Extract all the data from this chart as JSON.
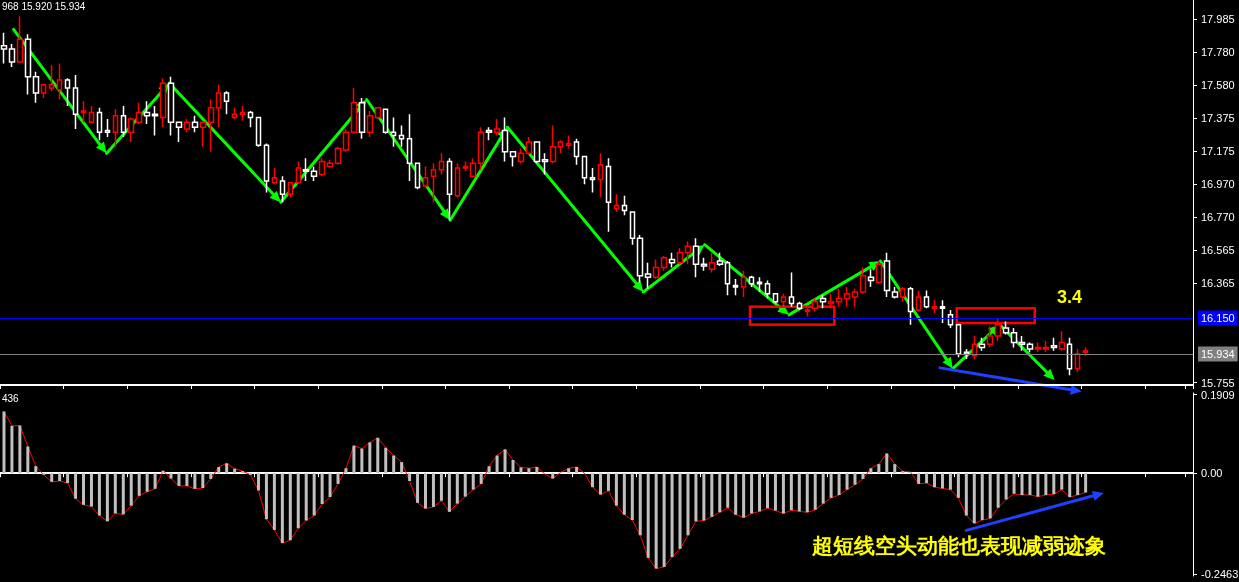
{
  "chart_data": [
    {
      "type": "candlestick",
      "categories": [
        null,
        null,
        null,
        null,
        null,
        null,
        null,
        null,
        null,
        null,
        null,
        null,
        null,
        null,
        null,
        null,
        null,
        null,
        null,
        null,
        null,
        null,
        null,
        null,
        null,
        null,
        null,
        null,
        null,
        null,
        null,
        null,
        null,
        null,
        null,
        null,
        null,
        null,
        null,
        null,
        null,
        null,
        null,
        null,
        null,
        null,
        null,
        null,
        null,
        null,
        null,
        null,
        null,
        null,
        null,
        null,
        null,
        null,
        null,
        null,
        null,
        null,
        null,
        null,
        null,
        null,
        null,
        null,
        null,
        null,
        null,
        null,
        null,
        null,
        null,
        null,
        null,
        null,
        null,
        null,
        null,
        null,
        null,
        null,
        null,
        null,
        null,
        null,
        null,
        null,
        null,
        null,
        null,
        null,
        null,
        null,
        null,
        null,
        null,
        null,
        null,
        null,
        null,
        null,
        null,
        null,
        null,
        null,
        null,
        null,
        null,
        null,
        null,
        null,
        null,
        null,
        null,
        null,
        null,
        null,
        null,
        null,
        null,
        null,
        null,
        null,
        null,
        null,
        null,
        null,
        null,
        null,
        null,
        null,
        null,
        null,
        null,
        null,
        null,
        null,
        null,
        null,
        null,
        null,
        null,
        null,
        null,
        null,
        null,
        null
      ],
      "ohlc": [
        [
          17.82,
          17.9,
          17.71,
          17.8
        ],
        [
          17.8,
          17.83,
          17.69,
          17.72
        ],
        [
          17.72,
          18.0,
          17.72,
          17.86
        ],
        [
          17.86,
          17.89,
          17.52,
          17.63
        ],
        [
          17.63,
          17.66,
          17.47,
          17.53
        ],
        [
          17.53,
          17.58,
          17.5,
          17.58
        ],
        [
          17.56,
          17.7,
          17.54,
          17.58
        ],
        [
          17.55,
          17.71,
          17.49,
          17.61
        ],
        [
          17.61,
          17.62,
          17.45,
          17.56
        ],
        [
          17.56,
          17.64,
          17.31,
          17.4
        ],
        [
          17.41,
          17.48,
          17.35,
          17.42
        ],
        [
          17.35,
          17.45,
          17.35,
          17.41
        ],
        [
          17.41,
          17.44,
          17.24,
          17.29
        ],
        [
          17.3,
          17.37,
          17.26,
          17.29
        ],
        [
          17.29,
          17.43,
          17.2,
          17.39
        ],
        [
          17.39,
          17.45,
          17.26,
          17.29
        ],
        [
          17.29,
          17.38,
          17.23,
          17.37
        ],
        [
          17.35,
          17.47,
          17.34,
          17.41
        ],
        [
          17.41,
          17.48,
          17.34,
          17.39
        ],
        [
          17.4,
          17.45,
          17.27,
          17.39
        ],
        [
          17.38,
          17.62,
          17.32,
          17.59
        ],
        [
          17.59,
          17.63,
          17.27,
          17.35
        ],
        [
          17.35,
          17.35,
          17.23,
          17.32
        ],
        [
          17.31,
          17.37,
          17.29,
          17.35
        ],
        [
          17.35,
          17.39,
          17.29,
          17.32
        ],
        [
          17.32,
          17.35,
          17.2,
          17.35
        ],
        [
          17.35,
          17.49,
          17.17,
          17.44
        ],
        [
          17.44,
          17.58,
          17.32,
          17.53
        ],
        [
          17.53,
          17.54,
          17.4,
          17.48
        ],
        [
          17.38,
          17.44,
          17.37,
          17.4
        ],
        [
          17.4,
          17.45,
          17.36,
          17.41
        ],
        [
          17.41,
          17.42,
          17.32,
          17.38
        ],
        [
          17.38,
          17.38,
          17.2,
          17.21
        ],
        [
          17.21,
          17.22,
          16.92,
          16.99
        ],
        [
          16.98,
          17.07,
          16.97,
          17.01
        ],
        [
          16.99,
          17.02,
          16.86,
          16.91
        ],
        [
          16.91,
          16.98,
          16.89,
          16.98
        ],
        [
          16.98,
          17.11,
          16.98,
          17.07
        ],
        [
          17.06,
          17.13,
          16.99,
          17.05
        ],
        [
          17.05,
          17.08,
          16.99,
          17.02
        ],
        [
          17.03,
          17.13,
          17.02,
          17.11
        ],
        [
          17.08,
          17.12,
          17.07,
          17.1
        ],
        [
          17.1,
          17.2,
          17.09,
          17.19
        ],
        [
          17.18,
          17.31,
          17.17,
          17.29
        ],
        [
          17.29,
          17.56,
          17.28,
          17.47
        ],
        [
          17.47,
          17.5,
          17.25,
          17.29
        ],
        [
          17.29,
          17.42,
          17.26,
          17.39
        ],
        [
          17.38,
          17.44,
          17.37,
          17.44
        ],
        [
          17.43,
          17.43,
          17.28,
          17.29
        ],
        [
          17.29,
          17.38,
          17.2,
          17.27
        ],
        [
          17.27,
          17.33,
          17.2,
          17.25
        ],
        [
          17.25,
          17.4,
          16.99,
          17.1
        ],
        [
          17.1,
          17.1,
          16.94,
          16.95
        ],
        [
          16.96,
          17.08,
          16.95,
          17.01
        ],
        [
          17.02,
          17.1,
          16.86,
          17.06
        ],
        [
          17.06,
          17.16,
          17.03,
          17.11
        ],
        [
          17.11,
          17.13,
          16.75,
          16.91
        ],
        [
          16.9,
          17.1,
          16.89,
          17.07
        ],
        [
          17.07,
          17.11,
          17.05,
          17.08
        ],
        [
          17.02,
          17.13,
          17.01,
          17.1
        ],
        [
          17.1,
          17.32,
          17.06,
          17.29
        ],
        [
          17.3,
          17.32,
          17.24,
          17.29
        ],
        [
          17.29,
          17.37,
          17.27,
          17.31
        ],
        [
          17.3,
          17.38,
          17.11,
          17.17
        ],
        [
          17.17,
          17.17,
          17.08,
          17.14
        ],
        [
          17.11,
          17.19,
          17.1,
          17.16
        ],
        [
          17.16,
          17.26,
          17.15,
          17.23
        ],
        [
          17.23,
          17.23,
          17.1,
          17.11
        ],
        [
          17.12,
          17.16,
          17.03,
          17.11
        ],
        [
          17.11,
          17.33,
          17.1,
          17.2
        ],
        [
          17.2,
          17.24,
          17.16,
          17.23
        ],
        [
          17.21,
          17.27,
          17.19,
          17.22
        ],
        [
          17.23,
          17.25,
          17.09,
          17.14
        ],
        [
          17.14,
          17.14,
          16.97,
          17.01
        ],
        [
          17.01,
          17.07,
          16.92,
          17.0
        ],
        [
          17.0,
          17.16,
          16.89,
          17.09
        ],
        [
          17.08,
          17.13,
          16.68,
          16.86
        ],
        [
          16.82,
          16.91,
          16.8,
          16.84
        ],
        [
          16.84,
          16.9,
          16.78,
          16.81
        ],
        [
          16.8,
          16.8,
          16.6,
          16.64
        ],
        [
          16.64,
          16.66,
          16.37,
          16.41
        ],
        [
          16.42,
          16.49,
          16.33,
          16.4
        ],
        [
          16.4,
          16.51,
          16.39,
          16.46
        ],
        [
          16.46,
          16.53,
          16.44,
          16.52
        ],
        [
          16.51,
          16.55,
          16.46,
          16.49
        ],
        [
          16.49,
          16.58,
          16.48,
          16.55
        ],
        [
          16.55,
          16.62,
          16.48,
          16.59
        ],
        [
          16.59,
          16.64,
          16.4,
          16.48
        ],
        [
          16.48,
          16.52,
          16.44,
          16.47
        ],
        [
          16.45,
          16.55,
          16.43,
          16.49
        ],
        [
          16.5,
          16.55,
          16.47,
          16.48
        ],
        [
          16.49,
          16.5,
          16.29,
          16.36
        ],
        [
          16.35,
          16.39,
          16.29,
          16.34
        ],
        [
          16.34,
          16.44,
          16.28,
          16.4
        ],
        [
          16.4,
          16.41,
          16.34,
          16.36
        ],
        [
          16.37,
          16.4,
          16.31,
          16.36
        ],
        [
          16.36,
          16.38,
          16.27,
          16.3
        ],
        [
          16.3,
          16.3,
          16.24,
          16.25
        ],
        [
          16.25,
          16.3,
          16.23,
          16.28
        ],
        [
          16.28,
          16.43,
          16.22,
          16.24
        ],
        [
          16.24,
          16.25,
          16.2,
          16.21
        ],
        [
          16.19,
          16.21,
          16.16,
          16.2
        ],
        [
          16.21,
          16.27,
          16.19,
          16.25
        ],
        [
          16.27,
          16.29,
          16.21,
          16.25
        ],
        [
          16.24,
          16.3,
          16.21,
          16.25
        ],
        [
          16.25,
          16.33,
          16.22,
          16.27
        ],
        [
          16.27,
          16.34,
          16.22,
          16.3
        ],
        [
          16.28,
          16.33,
          16.22,
          16.31
        ],
        [
          16.31,
          16.46,
          16.3,
          16.41
        ],
        [
          16.4,
          16.45,
          16.34,
          16.38
        ],
        [
          16.37,
          16.5,
          16.36,
          16.48
        ],
        [
          16.5,
          16.55,
          16.28,
          16.32
        ],
        [
          16.31,
          16.34,
          16.27,
          16.28
        ],
        [
          16.28,
          16.34,
          16.25,
          16.33
        ],
        [
          16.33,
          16.34,
          16.11,
          16.19
        ],
        [
          16.2,
          16.32,
          16.19,
          16.28
        ],
        [
          16.28,
          16.32,
          16.21,
          16.22
        ],
        [
          16.21,
          16.26,
          16.18,
          16.22
        ],
        [
          16.22,
          16.26,
          16.12,
          16.21
        ],
        [
          16.17,
          16.2,
          16.09,
          16.11
        ],
        [
          16.11,
          16.11,
          15.91,
          15.93
        ],
        [
          15.94,
          15.96,
          15.9,
          15.93
        ],
        [
          15.92,
          16.04,
          15.9,
          15.99
        ],
        [
          15.99,
          16.03,
          15.95,
          15.97
        ],
        [
          15.99,
          16.1,
          15.97,
          16.04
        ],
        [
          16.04,
          16.15,
          16.01,
          16.11
        ],
        [
          16.09,
          16.13,
          16.05,
          16.06
        ],
        [
          16.06,
          16.09,
          15.97,
          16.0
        ],
        [
          16.0,
          16.04,
          15.95,
          15.99
        ],
        [
          15.99,
          16.0,
          15.94,
          15.96
        ],
        [
          15.96,
          16.0,
          15.94,
          15.97
        ],
        [
          15.96,
          16.01,
          15.94,
          15.97
        ],
        [
          15.98,
          16.03,
          15.95,
          15.97
        ],
        [
          15.96,
          16.07,
          15.95,
          16.0
        ],
        [
          15.99,
          16.03,
          15.8,
          15.84
        ],
        [
          15.84,
          15.96,
          15.82,
          15.93
        ],
        [
          15.94,
          15.97,
          15.92,
          15.95
        ],
        null,
        null,
        null,
        null,
        null,
        null,
        null,
        null,
        null,
        null,
        null,
        null,
        null
      ],
      "colors": [
        "#ffffff",
        "#ffffff",
        "#ff0000",
        "#ffffff",
        "#ffffff",
        "#ff0000",
        "#ff0000",
        "#ff0000",
        "#ffffff",
        "#ffffff",
        "#ff0000",
        "#ff0000",
        "#ffffff",
        "#ffffff",
        "#ff0000",
        "#ffffff",
        "#ff0000",
        "#ff0000",
        "#ffffff",
        "#ffffff",
        "#ff0000",
        "#ffffff",
        "#ffffff",
        "#ff0000",
        "#ffffff",
        "#ff0000",
        "#ff0000",
        "#ff0000",
        "#ffffff",
        "#ff0000",
        "#ff0000",
        "#ffffff",
        "#ffffff",
        "#ffffff",
        "#ff0000",
        "#ffffff",
        "#ff0000",
        "#ff0000",
        "#ffffff",
        "#ffffff",
        "#ff0000",
        "#ff0000",
        "#ff0000",
        "#ff0000",
        "#ff0000",
        "#ffffff",
        "#ff0000",
        "#ff0000",
        "#ffffff",
        "#ffffff",
        "#ffffff",
        "#ffffff",
        "#ffffff",
        "#ff0000",
        "#ff0000",
        "#ff0000",
        "#ffffff",
        "#ff0000",
        "#ff0000",
        "#ff0000",
        "#ff0000",
        "#ffffff",
        "#ff0000",
        "#ffffff",
        "#ffffff",
        "#ff0000",
        "#ff0000",
        "#ffffff",
        "#ffffff",
        "#ff0000",
        "#ff0000",
        "#ff0000",
        "#ffffff",
        "#ffffff",
        "#ffffff",
        "#ff0000",
        "#ffffff",
        "#ff0000",
        "#ffffff",
        "#ffffff",
        "#ffffff",
        "#ffffff",
        "#ff0000",
        "#ff0000",
        "#ffffff",
        "#ff0000",
        "#ff0000",
        "#ffffff",
        "#ffffff",
        "#ff0000",
        "#ffffff",
        "#ffffff",
        "#ffffff",
        "#ff0000",
        "#ffffff",
        "#ffffff",
        "#ffffff",
        "#ffffff",
        "#ff0000",
        "#ffffff",
        "#ffffff",
        "#ff0000",
        "#ff0000",
        "#ffffff",
        "#ff0000",
        "#ff0000",
        "#ff0000",
        "#ff0000",
        "#ff0000",
        "#ffffff",
        "#ff0000",
        "#ffffff",
        "#ffffff",
        "#ff0000",
        "#ffffff",
        "#ff0000",
        "#ffffff",
        "#ff0000",
        "#ffffff",
        "#ffffff",
        "#ffffff",
        "#ffffff",
        "#ff0000",
        "#ffffff",
        "#ff0000",
        "#ff0000",
        "#ffffff",
        "#ffffff",
        "#ffffff",
        "#ffffff",
        "#ff0000",
        "#ff0000",
        "#ffffff",
        "#ff0000",
        "#ffffff",
        "#ff0000",
        "#ff0000",
        null,
        null,
        null,
        null,
        null,
        null,
        null,
        null,
        null,
        null,
        null,
        null,
        null
      ],
      "ylim": [
        15.74,
        18.1
      ],
      "yticks": [
        17.985,
        {
          "value": 17.78,
          "label": "17.780"
        },
        {
          "value": 17.58,
          "label": "17.580"
        },
        17.375,
        17.175,
        {
          "value": 16.97,
          "label": "16.970"
        },
        {
          "value": 16.77,
          "label": "16.770"
        },
        16.565,
        16.365,
        15.755
      ],
      "ref_lines": [
        {
          "axis": "y",
          "value": 16.15,
          "label": "16.150",
          "color": "#0000ff"
        },
        {
          "axis": "y",
          "value": 15.934,
          "label": "15.934",
          "color": "#808080"
        }
      ],
      "annotations": [
        "968 15.920 15.934",
        "3.4"
      ],
      "tick_labels": "y"
    },
    {
      "type": "bar",
      "categories": [
        null,
        null,
        null,
        null,
        null,
        null,
        null,
        null,
        null,
        null,
        null,
        null,
        null,
        null,
        null,
        null,
        null,
        null,
        null,
        null,
        null,
        null,
        null,
        null,
        null,
        null,
        null,
        null,
        null,
        null,
        null,
        null,
        null,
        null,
        null,
        null,
        null,
        null,
        null,
        null,
        null,
        null,
        null,
        null,
        null,
        null,
        null,
        null,
        null,
        null,
        null,
        null,
        null,
        null,
        null,
        null,
        null,
        null,
        null,
        null,
        null,
        null,
        null,
        null,
        null,
        null,
        null,
        null,
        null,
        null,
        null,
        null,
        null,
        null,
        null,
        null,
        null,
        null,
        null,
        null,
        null,
        null,
        null,
        null,
        null,
        null,
        null,
        null,
        null,
        null,
        null,
        null,
        null,
        null,
        null,
        null,
        null,
        null,
        null,
        null,
        null,
        null,
        null,
        null,
        null,
        null,
        null,
        null,
        null,
        null,
        null,
        null,
        null,
        null,
        null,
        null,
        null,
        null,
        null,
        null,
        null,
        null,
        null,
        null,
        null,
        null,
        null,
        null,
        null,
        null,
        null,
        null,
        null,
        null,
        null,
        null,
        null,
        null,
        null,
        null,
        null,
        null,
        null,
        null,
        null,
        null,
        null,
        null,
        null,
        null
      ],
      "series": [
        {
          "type": "bar",
          "color": "#c0c0c0",
          "values": [
            0.15,
            0.115,
            0.116,
            0.065,
            0.017,
            -0.004,
            -0.021,
            -0.019,
            -0.024,
            -0.062,
            -0.077,
            -0.081,
            -0.103,
            -0.117,
            -0.098,
            -0.1,
            -0.079,
            -0.055,
            -0.045,
            -0.038,
            0.006,
            -0.013,
            -0.031,
            -0.031,
            -0.038,
            -0.036,
            -0.014,
            0.015,
            0.024,
            0.011,
            0.005,
            -0.004,
            -0.042,
            -0.112,
            -0.138,
            -0.17,
            -0.163,
            -0.134,
            -0.115,
            -0.103,
            -0.075,
            -0.058,
            -0.026,
            0.012,
            0.067,
            0.06,
            0.075,
            0.086,
            0.062,
            0.043,
            0.027,
            -0.019,
            -0.072,
            -0.086,
            -0.082,
            -0.067,
            -0.094,
            -0.074,
            -0.057,
            -0.04,
            -0.026,
            0.017,
            0.043,
            0.058,
            0.032,
            0.014,
            0.012,
            0.015,
            -0.002,
            -0.013,
            0.002,
            0.012,
            0.015,
            0.0,
            -0.034,
            -0.052,
            -0.043,
            -0.079,
            -0.101,
            -0.114,
            -0.151,
            -0.206,
            -0.232,
            -0.228,
            -0.204,
            -0.184,
            -0.151,
            -0.117,
            -0.115,
            -0.106,
            -0.095,
            -0.084,
            -0.101,
            -0.108,
            -0.098,
            -0.093,
            -0.085,
            -0.091,
            -0.098,
            -0.09,
            -0.093,
            -0.095,
            -0.089,
            -0.074,
            -0.06,
            -0.053,
            -0.04,
            -0.028,
            -0.014,
            0.012,
            0.022,
            0.048,
            0.022,
            0.005,
            0.003,
            -0.026,
            -0.024,
            -0.034,
            -0.037,
            -0.04,
            -0.06,
            -0.103,
            -0.122,
            -0.114,
            -0.11,
            -0.084,
            -0.064,
            -0.05,
            -0.053,
            -0.053,
            -0.057,
            -0.053,
            -0.051,
            -0.04,
            -0.058,
            -0.053,
            -0.047,
            null,
            null,
            null,
            null,
            null,
            null,
            null,
            null,
            null,
            null,
            null,
            null,
            null
          ]
        },
        {
          "type": "line",
          "color": "#ff0000",
          "values": [
            0.15,
            0.115,
            0.116,
            0.065,
            0.017,
            -0.004,
            -0.021,
            -0.019,
            -0.024,
            -0.062,
            -0.077,
            -0.081,
            -0.103,
            -0.117,
            -0.098,
            -0.1,
            -0.079,
            -0.055,
            -0.045,
            -0.038,
            0.006,
            -0.013,
            -0.031,
            -0.031,
            -0.038,
            -0.036,
            -0.014,
            0.015,
            0.024,
            0.011,
            0.005,
            -0.004,
            -0.042,
            -0.112,
            -0.138,
            -0.17,
            -0.163,
            -0.134,
            -0.115,
            -0.103,
            -0.075,
            -0.058,
            -0.026,
            0.012,
            0.067,
            0.06,
            0.075,
            0.086,
            0.062,
            0.043,
            0.027,
            -0.019,
            -0.072,
            -0.086,
            -0.082,
            -0.067,
            -0.094,
            -0.074,
            -0.057,
            -0.04,
            -0.026,
            0.017,
            0.043,
            0.058,
            0.032,
            0.014,
            0.012,
            0.015,
            -0.002,
            -0.013,
            0.002,
            0.012,
            0.015,
            0.0,
            -0.034,
            -0.052,
            -0.043,
            -0.079,
            -0.101,
            -0.114,
            -0.151,
            -0.206,
            -0.232,
            -0.228,
            -0.204,
            -0.184,
            -0.151,
            -0.117,
            -0.115,
            -0.106,
            -0.095,
            -0.084,
            -0.101,
            -0.108,
            -0.098,
            -0.093,
            -0.085,
            -0.091,
            -0.098,
            -0.09,
            -0.093,
            -0.095,
            -0.089,
            -0.074,
            -0.06,
            -0.053,
            -0.04,
            -0.028,
            -0.014,
            0.012,
            0.022,
            0.048,
            0.022,
            0.005,
            0.003,
            -0.026,
            -0.024,
            -0.034,
            -0.037,
            -0.04,
            -0.06,
            -0.103,
            -0.122,
            -0.114,
            -0.11,
            -0.084,
            -0.064,
            -0.05,
            -0.053,
            -0.053,
            -0.057,
            -0.053,
            -0.051,
            -0.04,
            -0.058,
            -0.053,
            -0.047,
            null,
            null,
            null,
            null,
            null,
            null,
            null,
            null,
            null,
            null,
            null,
            null,
            null
          ]
        }
      ],
      "ylim": [
        -0.25,
        0.195
      ],
      "yticks": [
        0.1909,
        {
          "value": 0,
          "label": "0.00"
        },
        -0.2463
      ],
      "annotations": [
        "436",
        "超短线空头动能也表现减弱迹象"
      ],
      "tick_labels": "y"
    }
  ]
}
